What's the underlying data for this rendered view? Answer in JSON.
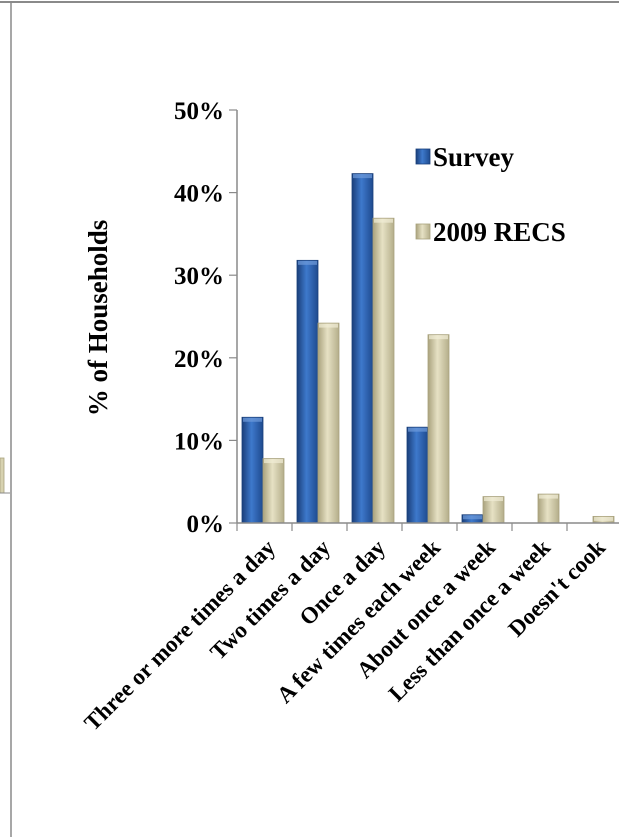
{
  "chart_data": {
    "type": "bar",
    "xlabel": "",
    "ylabel": "% of Households",
    "ylim": [
      0,
      50
    ],
    "yticks": [
      0,
      10,
      20,
      30,
      40,
      50
    ],
    "ytick_labels": [
      "0%",
      "10%",
      "20%",
      "30%",
      "40%",
      "50%"
    ],
    "grid": false,
    "legend_position": "top-right",
    "categories": [
      "Three or more times a day",
      "Two times a day",
      "Once a day",
      "A few times each week",
      "About once a week",
      "Less than once a week",
      "Doesn't cook"
    ],
    "series": [
      {
        "name": "Survey",
        "color": "#2F65B5",
        "values": [
          12.8,
          31.8,
          42.3,
          11.6,
          1.0,
          0.0,
          0.0
        ]
      },
      {
        "name": "2009 RECS",
        "color": "#D7D2B0",
        "values": [
          7.8,
          24.2,
          36.9,
          22.8,
          3.2,
          3.5,
          0.8
        ]
      }
    ]
  }
}
